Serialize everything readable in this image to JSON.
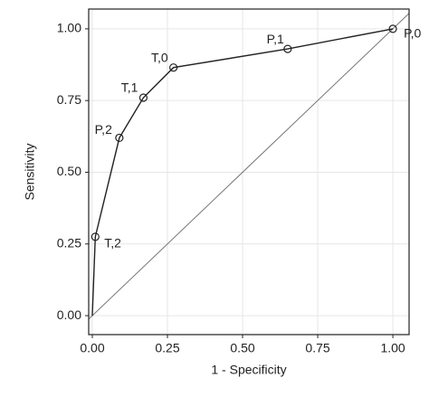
{
  "chart_data": {
    "type": "line",
    "x_label": "1 - Specificity",
    "y_label": "Sensitivity",
    "series": [
      {
        "x": [
          0,
          0.01,
          0.09,
          0.17,
          0.27,
          0.65,
          1.0
        ],
        "values": [
          0,
          0.275,
          0.62,
          0.76,
          0.865,
          0.93,
          1.0
        ],
        "point_labels": [
          null,
          "T,2",
          "P,2",
          "T,1",
          "T,0",
          "P,1",
          "P,0"
        ],
        "color": "#222222"
      }
    ],
    "reference_line": true,
    "xlim": [
      -0.012,
      1.054
    ],
    "ylim": [
      -0.066,
      1.069
    ],
    "xticks": [
      {
        "value": 0,
        "label": "0.00"
      },
      {
        "value": 0.25,
        "label": "0.25"
      },
      {
        "value": 0.5,
        "label": "0.50"
      },
      {
        "value": 0.75,
        "label": "0.75"
      },
      {
        "value": 1,
        "label": "1.00"
      }
    ],
    "yticks": [
      {
        "value": 0,
        "label": "0.00"
      },
      {
        "value": 0.25,
        "label": "0.25"
      },
      {
        "value": 0.5,
        "label": "0.50"
      },
      {
        "value": 0.75,
        "label": "0.75"
      },
      {
        "value": 1,
        "label": "1.00"
      }
    ],
    "grid": true
  }
}
